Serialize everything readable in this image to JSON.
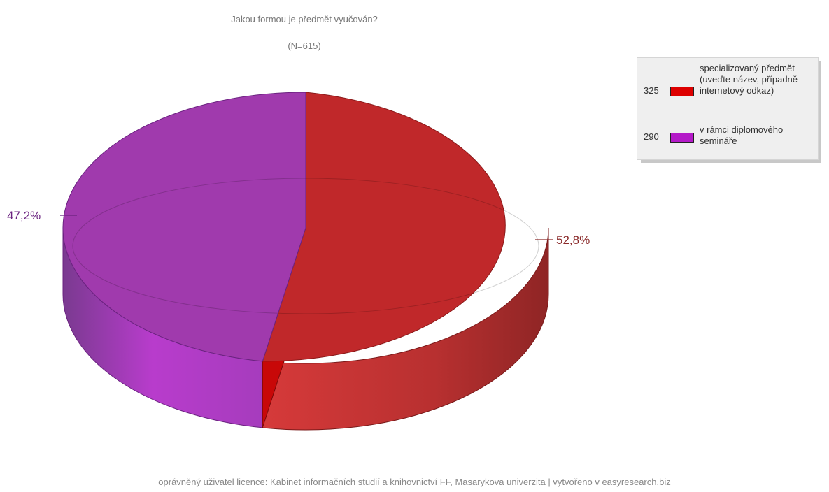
{
  "chart_data": {
    "type": "pie",
    "title": "Jakou formou je předmět vyučován?",
    "subtitle": "(N=615)",
    "series": [
      {
        "name": "specializovaný předmět (uveďte název, případně internetový odkaz)",
        "count": 325,
        "percent_label": "52,8%",
        "color": "#c0282a",
        "swatch": "#dd0000"
      },
      {
        "name": "v rámci diplomového semináře",
        "count": 290,
        "percent_label": "47,2%",
        "color": "#a03aad",
        "swatch": "#b41ac8"
      }
    ],
    "legend_position": "top-right"
  },
  "footer": "oprávněný uživatel licence: Kabinet informačních studií a knihovnictví FF, Masarykova univerzita | vytvořeno v easyresearch.biz"
}
